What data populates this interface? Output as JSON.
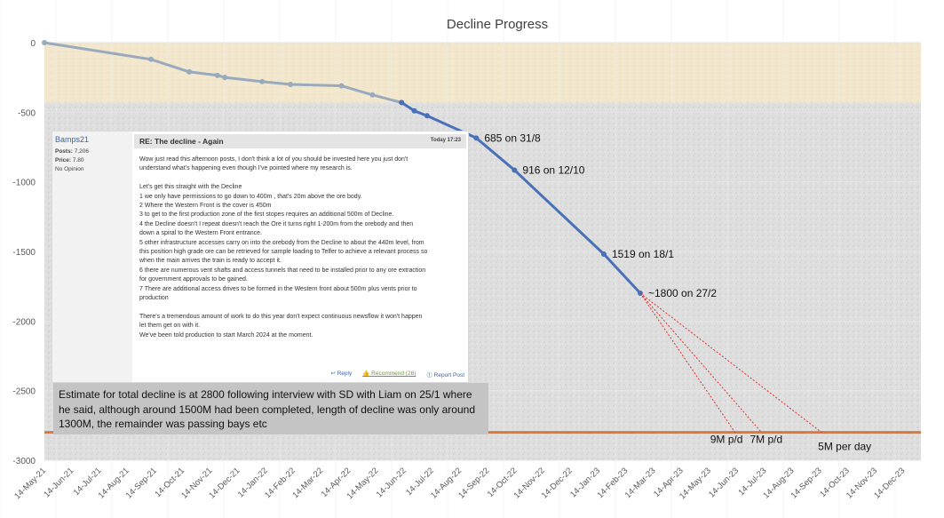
{
  "chart_data": {
    "type": "line",
    "title": "Decline Progress",
    "ylim": [
      -3000,
      0
    ],
    "y_ticks": [
      0,
      -500,
      -1000,
      -1500,
      -2000,
      -2500,
      -3000
    ],
    "x_tick_labels": [
      "14-May-21",
      "14-Jun-21",
      "14-Jul-21",
      "14-Aug-21",
      "14-Sep-21",
      "14-Oct-21",
      "14-Nov-21",
      "14-Dec-21",
      "14-Jan-22",
      "14-Feb-22",
      "14-Mar-22",
      "14-Apr-22",
      "14-May-22",
      "14-Jun-22",
      "14-Jul-22",
      "14-Aug-22",
      "14-Sep-22",
      "14-Oct-22",
      "14-Nov-22",
      "14-Dec-22",
      "14-Jan-23",
      "14-Feb-23",
      "14-Mar-23",
      "14-Apr-23",
      "14-May-23",
      "14-Jun-23",
      "14-Jul-23",
      "14-Aug-23",
      "14-Sep-23",
      "14-Oct-23",
      "14-Nov-23",
      "14-Dec-23"
    ],
    "xlim": [
      "2021-05-14",
      "2024-01-01"
    ],
    "series": [
      {
        "color": "#9aaabd",
        "points": [
          {
            "x": "2021-05-14",
            "y": 0
          },
          {
            "x": "2021-09-08",
            "y": -120
          },
          {
            "x": "2021-10-20",
            "y": -210
          },
          {
            "x": "2021-11-20",
            "y": -235
          },
          {
            "x": "2021-11-28",
            "y": -250
          },
          {
            "x": "2022-01-08",
            "y": -280
          },
          {
            "x": "2022-02-08",
            "y": -300
          },
          {
            "x": "2022-04-05",
            "y": -310
          },
          {
            "x": "2022-05-09",
            "y": -375
          },
          {
            "x": "2022-06-10",
            "y": -430
          }
        ]
      },
      {
        "color": "#4a70b8",
        "points": [
          {
            "x": "2022-06-10",
            "y": -430
          },
          {
            "x": "2022-06-24",
            "y": -490
          },
          {
            "x": "2022-07-08",
            "y": -525
          },
          {
            "x": "2022-08-31",
            "y": -685
          },
          {
            "x": "2022-10-12",
            "y": -916
          },
          {
            "x": "2023-01-18",
            "y": -1519
          },
          {
            "x": "2023-02-27",
            "y": -1800
          }
        ]
      }
    ],
    "data_labels": [
      {
        "x": "2022-08-31",
        "y": -685,
        "text": "685 on 31/8"
      },
      {
        "x": "2022-10-12",
        "y": -916,
        "text": "916 on 12/10"
      },
      {
        "x": "2023-01-18",
        "y": -1519,
        "text": "1519 on 18/1"
      },
      {
        "x": "2023-02-27",
        "y": -1800,
        "text": "~1800 on 27/2"
      }
    ],
    "projections": [
      {
        "label": "9M p/d",
        "from": {
          "x": "2023-02-27",
          "y": -1800
        },
        "to": {
          "x": "2023-06-11",
          "y": -2800
        }
      },
      {
        "label": "7M p/d",
        "from": {
          "x": "2023-02-27",
          "y": -1800
        },
        "to": {
          "x": "2023-07-10",
          "y": -2800
        }
      },
      {
        "label": "5M per day",
        "from": {
          "x": "2023-02-27",
          "y": -1800
        },
        "to": {
          "x": "2023-09-14",
          "y": -2800
        }
      }
    ],
    "target_line": {
      "y": -2800,
      "color": "#d97a3a"
    },
    "grid": true,
    "legend": "none"
  },
  "colors": {
    "cover_band": "#f1e4c8",
    "rock_band": "#dcdcdc",
    "projection": "#e03030",
    "target_line": "#d97a3a"
  },
  "forum_post": {
    "username": "Bamps21",
    "posts_label": "Posts:",
    "posts_value": "7,206",
    "price_label": "Price:",
    "price_value": "7.80",
    "opinion": "No Opinion",
    "subject": "RE: The decline - Again",
    "date": "Today 17:23",
    "body": [
      "Wow just read this afternoon posts, I don't think a lot of you should be invested here you just don't",
      "understand what's happening even though I've pointed where my research is.",
      "",
      "Let's get this straight with the Decline",
      "1 we only have permissions to go down to 400m , that's 20m above the ore body.",
      "2 Where the Western Front is the cover is 450m",
      "3 to get to the first production zone of the first stopes requires an additional 500m of Decline.",
      "4 the Decline doesn't I repeat doesn't reach the Ore it turns right 1-200m from the orebody and then",
      "down a spiral to the Western Front entrance.",
      "5 other infrastructure accesses carry on into the orebody from the Decline to about the 440m level, from",
      "this position high grade ore can be retrieved for sample loading to Telfer to achieve a relevant process so",
      "when the main arrives the train is ready to accept it.",
      "6 there are numerous vent shafts and access tunnels that need to be installed prior to any ore extraction",
      "for government approvals to be gained.",
      "7 There are additional access drives to be formed in the Western front about 500m plus vents prior to",
      "production",
      "",
      "There's a tremendous amount of work to do this year don't expect continuous newsflow it won't happen",
      "let them get on with it.",
      "We've been told production to start March 2024 at the moment."
    ],
    "reply": "Reply",
    "recommend": "Recommend (26)",
    "report": "Report Post"
  },
  "note": {
    "text": "Estimate for total decline is at 2800 following interview with SD with Liam on 25/1 where he said, although around 1500M had been completed, length of decline was only around 1300M, the remainder was passing bays etc"
  }
}
